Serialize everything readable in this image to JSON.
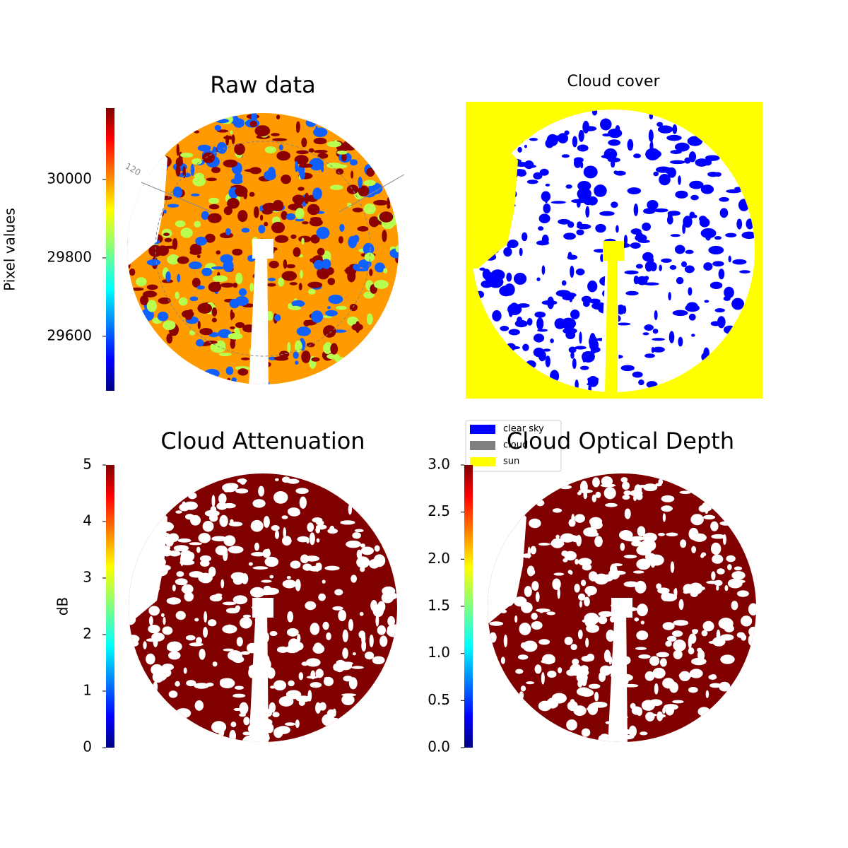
{
  "chart_data": [
    {
      "type": "image",
      "title": "Raw data",
      "annotation": "120",
      "colorbar": {
        "label": "Pixel values",
        "colormap": "jet",
        "lim": [
          29461,
          30182
        ],
        "ticks": [
          29600,
          29800,
          30000
        ]
      }
    },
    {
      "type": "image",
      "title": "Cloud cover",
      "legend": [
        {
          "name": "clear sky",
          "color": "#0000ff"
        },
        {
          "name": "cloud",
          "color": "#808080"
        },
        {
          "name": "sun",
          "color": "#ffff00"
        }
      ]
    },
    {
      "type": "image",
      "title": "Cloud Attenuation",
      "colorbar": {
        "label": "dB",
        "colormap": "jet",
        "lim": [
          0,
          5
        ],
        "ticks": [
          0,
          1,
          2,
          3,
          4,
          5
        ]
      }
    },
    {
      "type": "image",
      "title": "Cloud Optical Depth",
      "colorbar": {
        "colormap": "jet",
        "lim": [
          0,
          3
        ],
        "ticks": [
          {
            "value": 0,
            "label": "0.0"
          },
          0.5,
          {
            "value": 1,
            "label": "1.0"
          },
          1.5,
          {
            "value": 2,
            "label": "2.0"
          },
          2.5,
          {
            "value": 3,
            "label": "3.0"
          }
        ]
      }
    }
  ]
}
